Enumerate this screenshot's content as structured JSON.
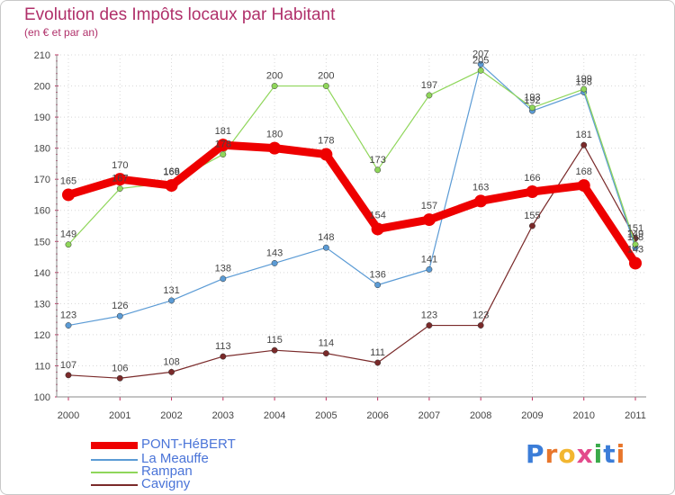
{
  "title": "Evolution des Impôts locaux par Habitant",
  "subtitle": "(en € et par an)",
  "logo_text": "Proxiti",
  "chart_data": {
    "type": "line",
    "title": "Evolution des Impôts locaux par Habitant",
    "subtitle": "(en € et par an)",
    "xlabel": "",
    "ylabel": "",
    "x": [
      "2000",
      "2001",
      "2002",
      "2003",
      "2004",
      "2005",
      "2006",
      "2007",
      "2008",
      "2009",
      "2010",
      "2011"
    ],
    "ylim": [
      100,
      210
    ],
    "yticks": [
      100,
      110,
      120,
      130,
      140,
      150,
      160,
      170,
      180,
      190,
      200,
      210
    ],
    "grid": true,
    "legend_position": "bottom-left",
    "series": [
      {
        "name": "PONT-HéBERT",
        "color": "#ee0000",
        "values": [
          165,
          170,
          168,
          181,
          180,
          178,
          154,
          157,
          163,
          166,
          168,
          143
        ]
      },
      {
        "name": "La Meauffe",
        "color": "#5b9bd5",
        "values": [
          123,
          126,
          131,
          138,
          143,
          148,
          136,
          141,
          207,
          192,
          198,
          148
        ]
      },
      {
        "name": "Rampan",
        "color": "#8fd65a",
        "values": [
          149,
          167,
          169,
          178,
          200,
          200,
          173,
          197,
          205,
          193,
          199,
          149
        ]
      },
      {
        "name": "Cavigny",
        "color": "#7a2a2a",
        "values": [
          107,
          106,
          108,
          113,
          115,
          114,
          111,
          123,
          123,
          155,
          181,
          151
        ]
      }
    ]
  }
}
